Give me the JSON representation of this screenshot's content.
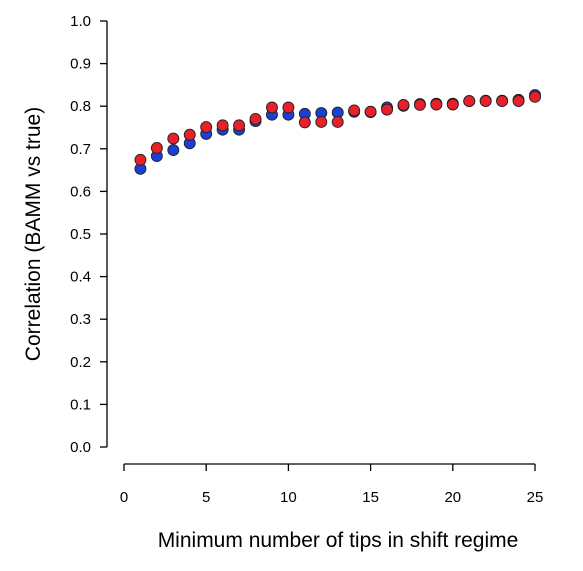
{
  "chart_data": {
    "type": "scatter",
    "title": "",
    "xlabel": "Minimum number of tips in shift regime",
    "ylabel": "Correlation (BAMM vs true)",
    "xlim": [
      0,
      25
    ],
    "ylim": [
      0.0,
      1.0
    ],
    "xticks": [
      "0",
      "5",
      "10",
      "15",
      "20",
      "25"
    ],
    "yticks": [
      "0.0",
      "0.1",
      "0.2",
      "0.3",
      "0.4",
      "0.5",
      "0.6",
      "0.7",
      "0.8",
      "0.9",
      "1.0"
    ],
    "grid": false,
    "legend": "none",
    "series": [
      {
        "color": "#1a3fd6",
        "x": [
          1,
          2,
          3,
          4,
          5,
          6,
          7,
          8,
          9,
          10,
          11,
          12,
          13,
          14,
          15,
          16,
          17,
          18,
          19,
          20,
          21,
          22,
          23,
          24,
          25
        ],
        "y": [
          0.653,
          0.683,
          0.697,
          0.713,
          0.735,
          0.745,
          0.745,
          0.765,
          0.78,
          0.78,
          0.782,
          0.784,
          0.785,
          0.787,
          0.786,
          0.797,
          0.801,
          0.805,
          0.806,
          0.806,
          0.812,
          0.813,
          0.813,
          0.815,
          0.826
        ]
      },
      {
        "color": "#e8202a",
        "x": [
          1,
          2,
          3,
          4,
          5,
          6,
          7,
          8,
          9,
          10,
          11,
          12,
          13,
          14,
          15,
          16,
          17,
          18,
          19,
          20,
          21,
          22,
          23,
          24,
          25
        ],
        "y": [
          0.674,
          0.702,
          0.724,
          0.733,
          0.751,
          0.755,
          0.755,
          0.77,
          0.797,
          0.797,
          0.762,
          0.763,
          0.763,
          0.79,
          0.787,
          0.792,
          0.803,
          0.803,
          0.804,
          0.804,
          0.812,
          0.812,
          0.812,
          0.812,
          0.822
        ]
      }
    ]
  }
}
